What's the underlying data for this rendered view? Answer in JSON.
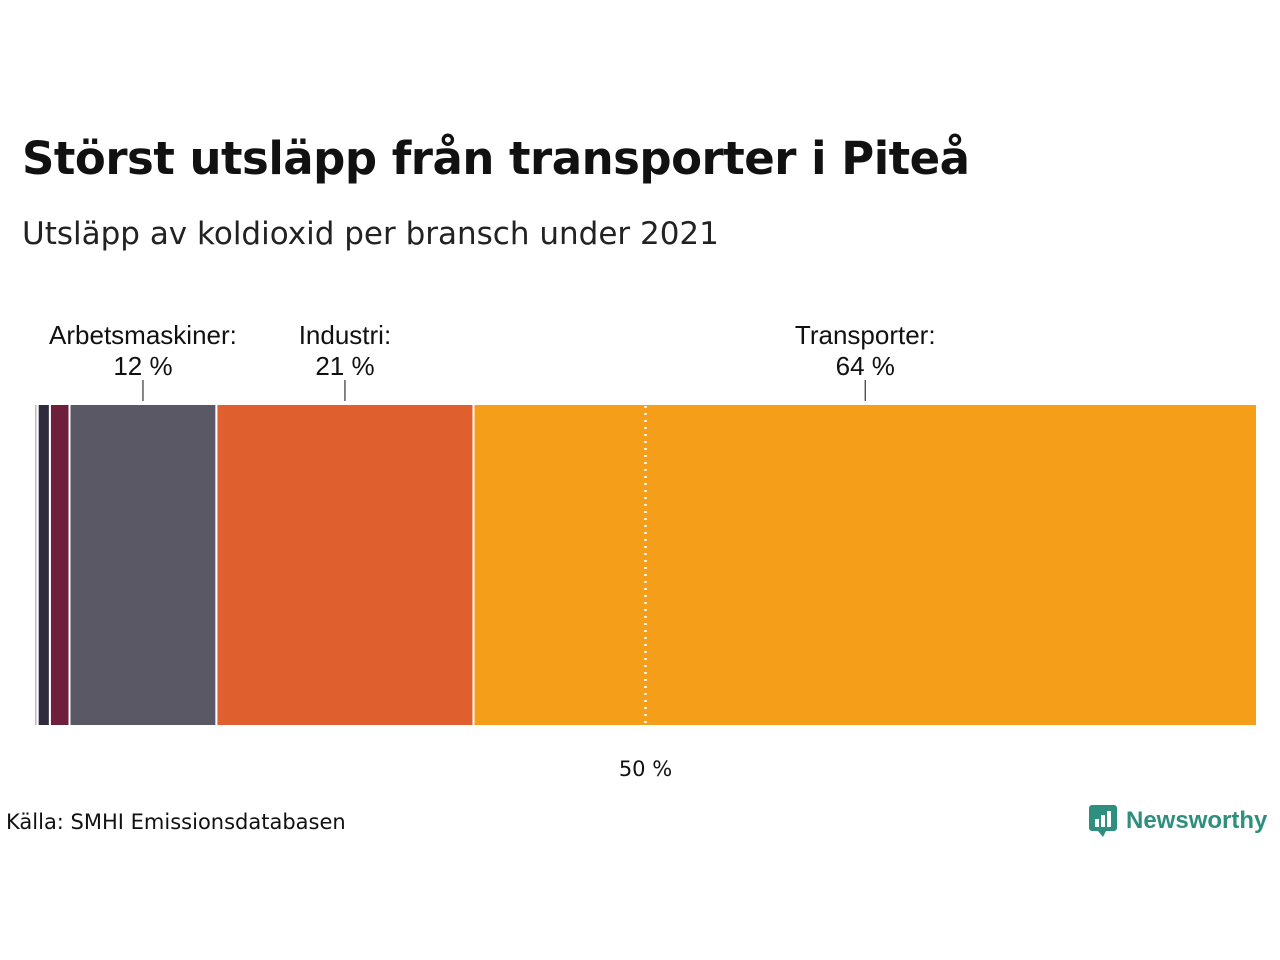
{
  "header": {
    "title": "Störst utsläpp från transporter i Piteå",
    "subtitle": "Utsläpp av koldioxid per bransch under 2021"
  },
  "footer": {
    "source": "Källa: SMHI Emissionsdatabasen",
    "brand": "Newsworthy",
    "brand_icon": "bar-chart-speech-bubble-icon",
    "brand_color": "#2f8f7f"
  },
  "chart_data": {
    "type": "bar",
    "orientation": "horizontal-stacked-100",
    "categories": [
      "",
      "",
      "",
      "Arbetsmaskiner",
      "Industri",
      "Transporter"
    ],
    "values": [
      0.3,
      1.0,
      1.6,
      12,
      21,
      64
    ],
    "unit": "%",
    "colors": [
      "#c9b8c0",
      "#2f2b3d",
      "#6e1f3c",
      "#5b5866",
      "#e05f2f",
      "#f59e1a"
    ],
    "labels": [
      {
        "index": 3,
        "name": "Arbetsmaskiner:",
        "value_text": "12 %"
      },
      {
        "index": 4,
        "name": "Industri:",
        "value_text": "21 %"
      },
      {
        "index": 5,
        "name": "Transporter:",
        "value_text": "64 %"
      }
    ],
    "reference_line": {
      "value": 50,
      "label": "50 %"
    },
    "xlim": [
      0,
      100
    ],
    "grid": false,
    "legend": "none"
  }
}
